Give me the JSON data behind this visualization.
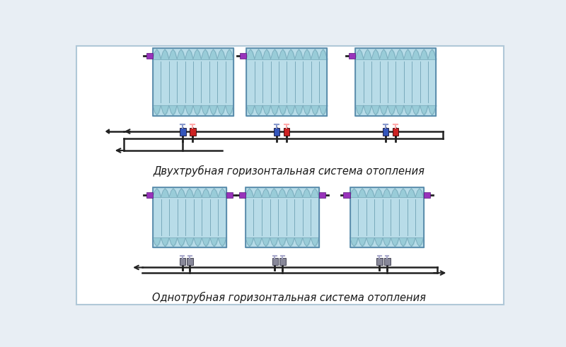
{
  "bg_color": "#ffffff",
  "border_color": "#b0c8d8",
  "rad_fill": "#b8dce8",
  "rad_border": "#7aaabb",
  "rad_fin_color": "#88bbcc",
  "rad_zigzag_fill": "#99ccd8",
  "pipe_color": "#222222",
  "valve_blue": "#3355bb",
  "valve_red": "#cc2222",
  "valve_gray": "#888899",
  "valve_dark": "#444455",
  "knob_color": "#9933bb",
  "knob_border": "#551177",
  "label1": "Двухтрубная горизонтальная система отопления",
  "label2": "Однотрубная горизонтальная система отопления",
  "fig_width": 8.0,
  "fig_height": 4.91,
  "outer_bg": "#e8eef4"
}
